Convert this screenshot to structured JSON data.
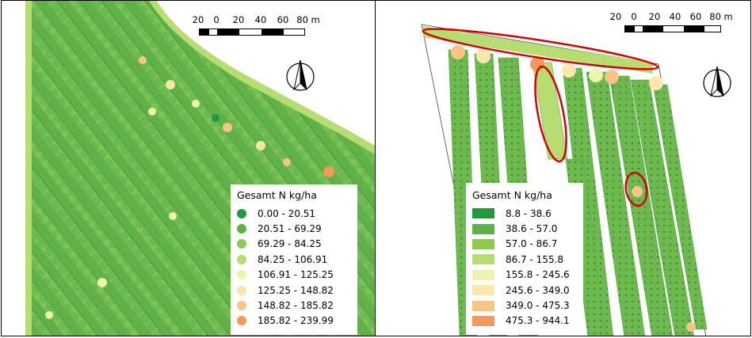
{
  "left_map": {
    "scale_labels": [
      "20",
      "0",
      "20",
      "40",
      "60",
      "80 m"
    ],
    "legend": {
      "title": "Gesamt N kg/ha",
      "classes": [
        {
          "label": "0.00 - 20.51",
          "color": "#1f9a3e"
        },
        {
          "label": "20.51 - 69.29",
          "color": "#5cb246"
        },
        {
          "label": "69.29 - 84.25",
          "color": "#8ec955"
        },
        {
          "label": "84.25 - 106.91",
          "color": "#b7dc72"
        },
        {
          "label": "106.91 - 125.25",
          "color": "#edf3a8"
        },
        {
          "label": "125.25 - 148.82",
          "color": "#fde5aa"
        },
        {
          "label": "148.82 - 185.82",
          "color": "#f8c584"
        },
        {
          "label": "185.82 - 239.99",
          "color": "#f29a5e"
        }
      ]
    }
  },
  "right_map": {
    "scale_labels": [
      "20",
      "0",
      "20",
      "40",
      "60",
      "80 m"
    ],
    "legend": {
      "title": "Gesamt N kg/ha",
      "classes": [
        {
          "label": "8.8 - 38.6",
          "color": "#1f9a3e"
        },
        {
          "label": "38.6 - 57.0",
          "color": "#5cb246"
        },
        {
          "label": "57.0 - 86.7",
          "color": "#8ec955"
        },
        {
          "label": "86.7 - 155.8",
          "color": "#b7dc72"
        },
        {
          "label": "155.8 - 245.6",
          "color": "#edf3b0"
        },
        {
          "label": "245.6 - 349.0",
          "color": "#fde7ac"
        },
        {
          "label": "349.0 - 475.3",
          "color": "#f8c584"
        },
        {
          "label": "475.3 - 944.1",
          "color": "#f29a5e"
        }
      ]
    }
  },
  "colors": {
    "field_green": "#6db84f",
    "border_green": "#b7dc72",
    "highlight_ellipse": "#d40000"
  }
}
